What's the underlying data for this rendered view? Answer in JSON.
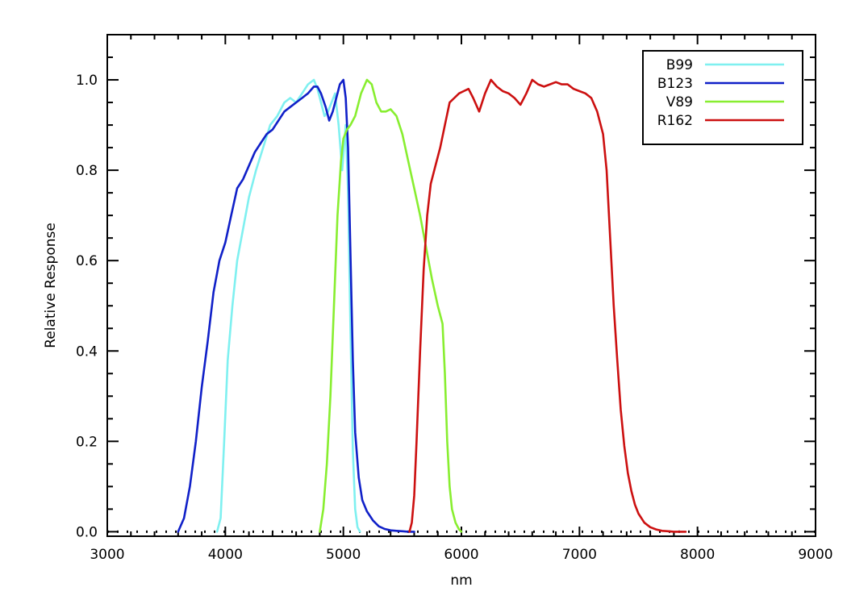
{
  "chart_data": {
    "type": "line",
    "title": "",
    "xlabel": "nm",
    "ylabel": "Relative Response",
    "xlim": [
      3000,
      9000
    ],
    "ylim": [
      -0.01,
      1.1
    ],
    "xticks": [
      3000,
      4000,
      5000,
      6000,
      7000,
      8000,
      9000
    ],
    "xtick_labels": [
      "3000",
      "4000",
      "5000",
      "6000",
      "7000",
      "8000",
      "9000"
    ],
    "yticks": [
      0.0,
      0.2,
      0.4,
      0.6,
      0.8,
      1.0
    ],
    "ytick_labels": [
      "0.0",
      "0.2",
      "0.4",
      "0.6",
      "0.8",
      "1.0"
    ],
    "grid": false,
    "legend_position": "top-right",
    "baseline_dotted": true,
    "series": [
      {
        "name": "B99",
        "color": "#7ff0f0",
        "x": [
          3930,
          3960,
          3990,
          4020,
          4060,
          4100,
          4150,
          4200,
          4260,
          4320,
          4380,
          4440,
          4500,
          4550,
          4600,
          4650,
          4700,
          4750,
          4780,
          4810,
          4840,
          4870,
          4900,
          4930,
          4960,
          4990,
          5020,
          5040,
          5060,
          5080,
          5100,
          5120,
          5140
        ],
        "y": [
          0.0,
          0.03,
          0.2,
          0.38,
          0.5,
          0.6,
          0.67,
          0.74,
          0.8,
          0.85,
          0.9,
          0.92,
          0.95,
          0.96,
          0.95,
          0.97,
          0.99,
          1.0,
          0.98,
          0.95,
          0.92,
          0.93,
          0.95,
          0.97,
          0.9,
          0.8,
          0.9,
          0.75,
          0.45,
          0.18,
          0.05,
          0.01,
          0.0
        ]
      },
      {
        "name": "B123",
        "color": "#1020c8",
        "x": [
          3600,
          3650,
          3700,
          3750,
          3800,
          3850,
          3900,
          3950,
          4000,
          4050,
          4100,
          4150,
          4200,
          4250,
          4300,
          4350,
          4400,
          4450,
          4500,
          4550,
          4600,
          4650,
          4700,
          4750,
          4780,
          4810,
          4850,
          4880,
          4910,
          4940,
          4970,
          5000,
          5020,
          5040,
          5060,
          5080,
          5100,
          5130,
          5160,
          5200,
          5250,
          5300,
          5350,
          5400,
          5450,
          5500,
          5550,
          5600
        ],
        "y": [
          0.0,
          0.03,
          0.1,
          0.2,
          0.32,
          0.42,
          0.53,
          0.6,
          0.64,
          0.7,
          0.76,
          0.78,
          0.81,
          0.84,
          0.86,
          0.88,
          0.89,
          0.91,
          0.93,
          0.94,
          0.95,
          0.96,
          0.97,
          0.985,
          0.985,
          0.97,
          0.94,
          0.91,
          0.93,
          0.96,
          0.99,
          1.0,
          0.96,
          0.85,
          0.62,
          0.38,
          0.22,
          0.12,
          0.07,
          0.045,
          0.025,
          0.012,
          0.006,
          0.003,
          0.002,
          0.001,
          0.0,
          0.0
        ]
      },
      {
        "name": "V89",
        "color": "#88ee30",
        "x": [
          4800,
          4830,
          4860,
          4890,
          4920,
          4950,
          4980,
          5000,
          5030,
          5060,
          5100,
          5150,
          5200,
          5240,
          5280,
          5320,
          5360,
          5400,
          5450,
          5500,
          5550,
          5600,
          5650,
          5700,
          5750,
          5800,
          5840,
          5860,
          5880,
          5900,
          5920,
          5950,
          5980,
          6000
        ],
        "y": [
          0.0,
          0.05,
          0.15,
          0.3,
          0.5,
          0.7,
          0.82,
          0.87,
          0.89,
          0.9,
          0.92,
          0.97,
          1.0,
          0.99,
          0.95,
          0.93,
          0.93,
          0.935,
          0.92,
          0.88,
          0.82,
          0.76,
          0.7,
          0.63,
          0.56,
          0.5,
          0.46,
          0.35,
          0.2,
          0.1,
          0.05,
          0.02,
          0.005,
          0.0
        ]
      },
      {
        "name": "R162",
        "color": "#cc1010",
        "x": [
          5560,
          5580,
          5600,
          5620,
          5650,
          5680,
          5710,
          5740,
          5780,
          5820,
          5860,
          5900,
          5940,
          5980,
          6020,
          6060,
          6100,
          6150,
          6200,
          6250,
          6300,
          6350,
          6400,
          6450,
          6500,
          6550,
          6600,
          6650,
          6700,
          6750,
          6800,
          6850,
          6900,
          6950,
          7000,
          7050,
          7100,
          7150,
          7200,
          7230,
          7260,
          7290,
          7320,
          7350,
          7380,
          7410,
          7440,
          7470,
          7500,
          7550,
          7600,
          7650,
          7700,
          7750,
          7800,
          7850,
          7900
        ],
        "y": [
          0.0,
          0.02,
          0.08,
          0.2,
          0.4,
          0.58,
          0.7,
          0.77,
          0.81,
          0.85,
          0.9,
          0.95,
          0.96,
          0.97,
          0.975,
          0.98,
          0.96,
          0.93,
          0.97,
          1.0,
          0.985,
          0.975,
          0.97,
          0.96,
          0.945,
          0.97,
          1.0,
          0.99,
          0.985,
          0.99,
          0.995,
          0.99,
          0.99,
          0.98,
          0.975,
          0.97,
          0.96,
          0.93,
          0.88,
          0.8,
          0.65,
          0.5,
          0.38,
          0.27,
          0.19,
          0.13,
          0.09,
          0.06,
          0.04,
          0.02,
          0.01,
          0.005,
          0.002,
          0.001,
          0.0,
          0.0,
          0.0
        ]
      }
    ]
  }
}
